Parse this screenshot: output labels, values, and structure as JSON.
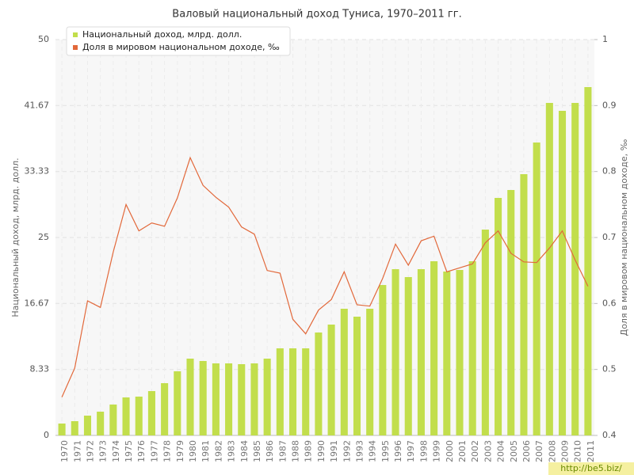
{
  "chart_data": {
    "type": "bar-line",
    "title": "Валовый национальный доход Туниса, 1970–2011 гг.",
    "ylabel": "Национальный доход, млрд. долл.",
    "y2label": "Доля в мировом национальном доходе, ‰",
    "watermark": "http://be5.biz/",
    "legend": "top-left",
    "grid": true,
    "categories": [
      "1970",
      "1971",
      "1972",
      "1973",
      "1974",
      "1975",
      "1976",
      "1977",
      "1978",
      "1979",
      "1980",
      "1981",
      "1982",
      "1983",
      "1984",
      "1985",
      "1986",
      "1987",
      "1988",
      "1989",
      "1990",
      "1991",
      "1992",
      "1993",
      "1994",
      "1995",
      "1996",
      "1997",
      "1998",
      "1999",
      "2000",
      "2001",
      "2002",
      "2003",
      "2004",
      "2005",
      "2006",
      "2007",
      "2008",
      "2009",
      "2010",
      "2011"
    ],
    "ylim": [
      0,
      50
    ],
    "yticks": [
      0,
      8.33,
      16.67,
      25,
      33.33,
      41.67,
      50
    ],
    "y2lim": [
      0.4,
      1
    ],
    "y2ticks": [
      0.4,
      0.5,
      0.6,
      0.7,
      0.8,
      0.9,
      1
    ],
    "series": [
      {
        "name": "Национальный доход, млрд. долл.",
        "type": "bar",
        "color": "#c2de4c",
        "values": [
          1.5,
          1.8,
          2.5,
          3.0,
          3.9,
          4.8,
          4.9,
          5.6,
          6.6,
          8.1,
          9.7,
          9.4,
          9.1,
          9.1,
          9.0,
          9.1,
          9.7,
          11.0,
          11.0,
          11.0,
          13.0,
          14.0,
          16.0,
          15.0,
          16.0,
          19.0,
          21.0,
          20.0,
          21.0,
          22.0,
          20.7,
          20.9,
          22.0,
          26.0,
          30.0,
          31.0,
          33.0,
          37.0,
          42.0,
          41.0,
          42.0,
          44.0
        ]
      },
      {
        "name": "Доля в мировом национальном доходе, ‰",
        "type": "line",
        "axis": "y2",
        "color": "#e2683a",
        "values": [
          0.458,
          0.502,
          0.604,
          0.594,
          0.678,
          0.75,
          0.71,
          0.722,
          0.717,
          0.76,
          0.821,
          0.779,
          0.761,
          0.746,
          0.716,
          0.705,
          0.65,
          0.646,
          0.576,
          0.554,
          0.59,
          0.606,
          0.648,
          0.598,
          0.596,
          0.638,
          0.69,
          0.658,
          0.695,
          0.702,
          0.648,
          0.654,
          0.66,
          0.692,
          0.71,
          0.676,
          0.663,
          0.662,
          0.684,
          0.71,
          0.666,
          0.626
        ]
      }
    ]
  }
}
